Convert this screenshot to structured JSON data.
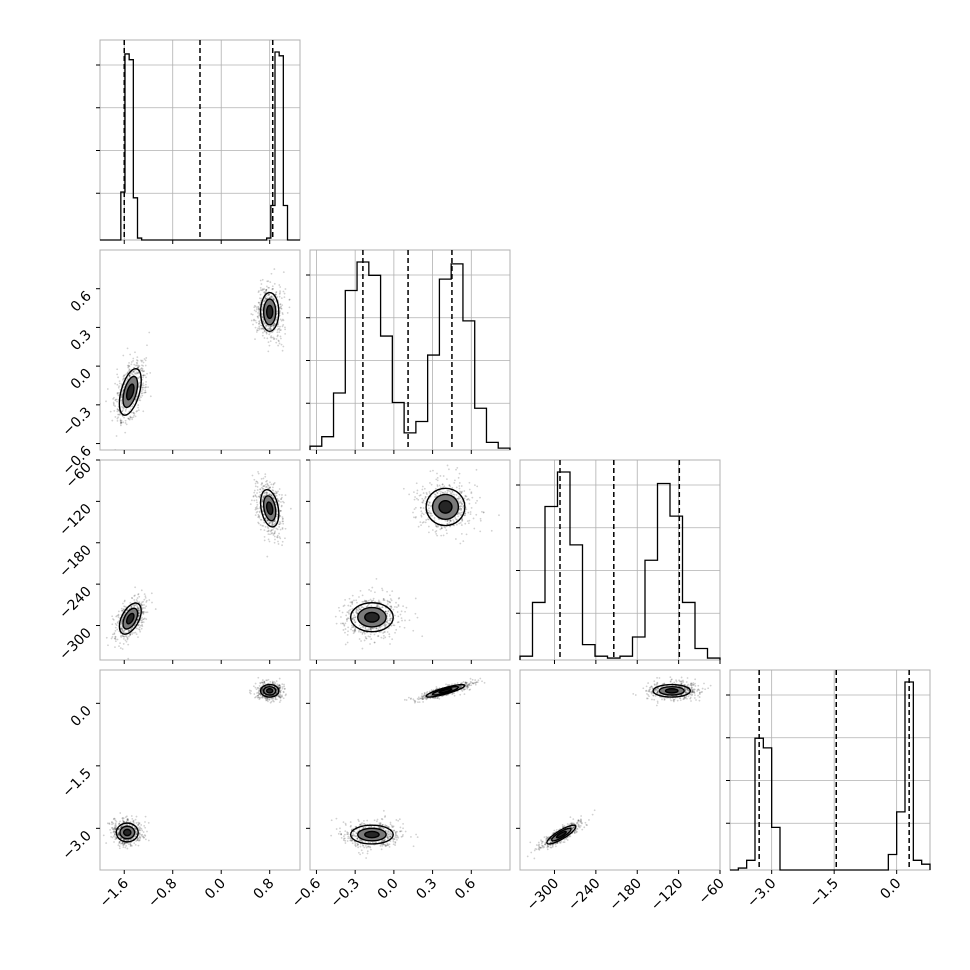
{
  "chart_data": {
    "type": "corner",
    "parameters": 4,
    "axes": [
      {
        "range": [
          -2.0,
          1.3
        ],
        "ticks": [
          -1.6,
          -0.8,
          0.0,
          0.8
        ],
        "tick_labels": [
          "−1.6",
          "−0.8",
          "0.0",
          "0.8"
        ],
        "quantiles": [
          -1.6,
          -0.35,
          0.85
        ],
        "modes": [
          {
            "center": -1.5,
            "sigma": 0.12,
            "weight": 0.5
          },
          {
            "center": 0.8,
            "sigma": 0.1,
            "weight": 0.5
          }
        ]
      },
      {
        "range": [
          -0.65,
          0.9
        ],
        "ticks": [
          -0.6,
          -0.3,
          0.0,
          0.3,
          0.6
        ],
        "tick_labels": [
          "−0.6",
          "−0.3",
          "0.0",
          "0.3",
          "0.6"
        ],
        "quantiles": [
          -0.24,
          0.11,
          0.45
        ],
        "modes": [
          {
            "center": -0.17,
            "sigma": 0.11,
            "weight": 0.5
          },
          {
            "center": 0.4,
            "sigma": 0.1,
            "weight": 0.5
          }
        ]
      },
      {
        "range": [
          -350,
          -60
        ],
        "ticks": [
          -300,
          -240,
          -180,
          -120,
          -60
        ],
        "tick_labels": [
          "−300",
          "−240",
          "−180",
          "−120",
          "−60"
        ],
        "quantiles": [
          -292,
          -214,
          -119
        ],
        "modes": [
          {
            "center": -288,
            "sigma": 14,
            "weight": 0.5
          },
          {
            "center": -130,
            "sigma": 18,
            "weight": 0.5
          }
        ]
      },
      {
        "range": [
          -4.0,
          0.8
        ],
        "ticks": [
          -3.0,
          -1.5,
          0.0
        ],
        "tick_labels": [
          "−3.0",
          "−1.5",
          "0.0"
        ],
        "quantiles": [
          -3.3,
          -1.45,
          0.3
        ],
        "modes": [
          {
            "center": -3.15,
            "sigma": 0.15,
            "weight": 0.5
          },
          {
            "center": 0.3,
            "sigma": 0.1,
            "weight": 0.5
          }
        ]
      }
    ],
    "histograms": [
      {
        "param": 0,
        "counts": [
          0.0,
          0.0,
          0.0,
          0.0,
          0.0,
          0.25,
          0.97,
          0.94,
          0.22,
          0.01,
          0.0,
          0.0,
          0.0,
          0.0,
          0.0,
          0.0,
          0.0,
          0.0,
          0.0,
          0.0,
          0.0,
          0.0,
          0.0,
          0.0,
          0.0,
          0.0,
          0.0,
          0.0,
          0.0,
          0.0,
          0.0,
          0.0,
          0.0,
          0.0,
          0.0,
          0.0,
          0.0,
          0.0,
          0.0,
          0.0,
          0.01,
          0.18,
          0.98,
          0.96,
          0.18,
          0.0,
          0.0,
          0.0
        ]
      },
      {
        "param": 1,
        "counts": [
          0.02,
          0.07,
          0.3,
          0.84,
          0.99,
          0.92,
          0.6,
          0.25,
          0.09,
          0.15,
          0.5,
          0.9,
          0.98,
          0.68,
          0.22,
          0.04,
          0.01
        ]
      },
      {
        "param": 2,
        "counts": [
          0.02,
          0.3,
          0.8,
          0.98,
          0.6,
          0.08,
          0.02,
          0.01,
          0.02,
          0.12,
          0.52,
          0.92,
          0.75,
          0.3,
          0.06,
          0.01
        ]
      },
      {
        "param": 3,
        "counts": [
          0.0,
          0.01,
          0.05,
          0.68,
          0.63,
          0.22,
          0.0,
          0.0,
          0.0,
          0.0,
          0.0,
          0.0,
          0.0,
          0.0,
          0.0,
          0.0,
          0.0,
          0.0,
          0.0,
          0.08,
          0.3,
          0.97,
          0.05,
          0.03
        ]
      }
    ],
    "scatter_panels": [
      {
        "x_param": 0,
        "y_param": 1,
        "clusters": [
          {
            "center": [
              -1.5,
              -0.2
            ],
            "sigma": [
              0.12,
              0.12
            ],
            "rho": 0.5
          },
          {
            "center": [
              0.8,
              0.42
            ],
            "sigma": [
              0.1,
              0.1
            ],
            "rho": 0.0
          }
        ]
      },
      {
        "x_param": 0,
        "y_param": 2,
        "clusters": [
          {
            "center": [
              -1.5,
              -290
            ],
            "sigma": [
              0.12,
              15
            ],
            "rho": 0.5
          },
          {
            "center": [
              0.8,
              -130
            ],
            "sigma": [
              0.1,
              18
            ],
            "rho": -0.3
          }
        ]
      },
      {
        "x_param": 1,
        "y_param": 2,
        "clusters": [
          {
            "center": [
              -0.17,
              -288
            ],
            "sigma": [
              0.11,
              14
            ],
            "rho": 0.0
          },
          {
            "center": [
              0.4,
              -128
            ],
            "sigma": [
              0.1,
              18
            ],
            "rho": 0.0
          }
        ]
      },
      {
        "x_param": 0,
        "y_param": 3,
        "clusters": [
          {
            "center": [
              -1.55,
              -3.1
            ],
            "sigma": [
              0.12,
              0.15
            ],
            "rho": 0.0
          },
          {
            "center": [
              0.8,
              0.3
            ],
            "sigma": [
              0.1,
              0.1
            ],
            "rho": 0.0
          }
        ]
      },
      {
        "x_param": 1,
        "y_param": 3,
        "clusters": [
          {
            "center": [
              -0.17,
              -3.15
            ],
            "sigma": [
              0.11,
              0.15
            ],
            "rho": 0.0
          },
          {
            "center": [
              0.4,
              0.3
            ],
            "sigma": [
              0.1,
              0.1
            ],
            "rho": 0.85
          }
        ]
      },
      {
        "x_param": 2,
        "y_param": 3,
        "clusters": [
          {
            "center": [
              -290,
              -3.15
            ],
            "sigma": [
              14,
              0.15
            ],
            "rho": 0.85
          },
          {
            "center": [
              -130,
              0.3
            ],
            "sigma": [
              18,
              0.1
            ],
            "rho": 0.0
          }
        ]
      }
    ],
    "grid": true,
    "contour_levels": [
      0.5,
      1.0,
      1.5
    ],
    "legend": "none"
  }
}
